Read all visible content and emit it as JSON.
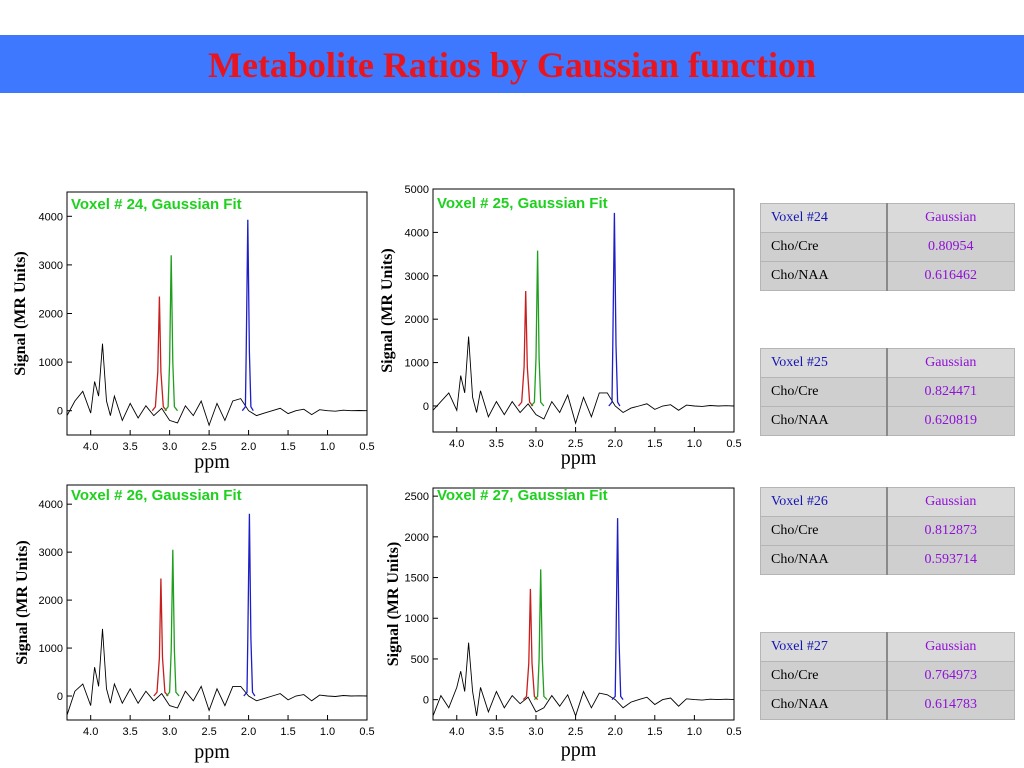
{
  "slide": {
    "title": "Metabolite Ratios by Gaussian function",
    "banner_color": "#3d78ff",
    "title_color": "#e8141e"
  },
  "chart_data": [
    {
      "type": "line",
      "title": "Voxel # 24, Gaussian Fit",
      "xlabel": "ppm",
      "ylabel": "Signal (MR Units)",
      "xlim": [
        4.3,
        0.5
      ],
      "ylim": [
        -500,
        4500
      ],
      "x_ticks": [
        4.0,
        3.5,
        3.0,
        2.5,
        2.0,
        1.5,
        1.0,
        0.5
      ],
      "y_ticks": [
        0,
        1000,
        2000,
        3000,
        4000
      ],
      "series": [
        {
          "color": "#000000",
          "x": [
            4.3,
            4.2,
            4.1,
            4.0,
            3.95,
            3.9,
            3.85,
            3.8,
            3.75,
            3.7,
            3.6,
            3.5,
            3.4,
            3.3,
            3.2,
            3.1,
            3.0,
            2.9,
            2.8,
            2.7,
            2.6,
            2.5,
            2.4,
            2.3,
            2.2,
            2.1,
            2.0,
            1.9,
            1.8,
            1.7,
            1.6,
            1.5,
            1.4,
            1.3,
            1.2,
            1.1,
            1.0,
            0.9,
            0.8,
            0.7,
            0.6,
            0.5
          ],
          "y": [
            -100,
            200,
            400,
            -50,
            600,
            300,
            1380,
            200,
            -100,
            300,
            -200,
            150,
            -150,
            100,
            -100,
            50,
            -200,
            -250,
            100,
            -100,
            200,
            -300,
            150,
            -200,
            200,
            250,
            0,
            -100,
            -50,
            0,
            50,
            -60,
            0,
            30,
            -80,
            20,
            0,
            -10,
            10,
            0,
            5,
            0
          ]
        },
        {
          "color": "#c81e1e",
          "x": [
            3.22,
            3.18,
            3.15,
            3.13,
            3.11,
            3.08,
            3.04
          ],
          "y": [
            0,
            80,
            800,
            2350,
            800,
            80,
            0
          ]
        },
        {
          "color": "#1ea01e",
          "x": [
            3.06,
            3.02,
            3.0,
            2.98,
            2.96,
            2.94,
            2.9
          ],
          "y": [
            0,
            80,
            1000,
            3200,
            1000,
            80,
            0
          ]
        },
        {
          "color": "#1e1ec8",
          "x": [
            2.08,
            2.04,
            2.03,
            2.01,
            1.99,
            1.97,
            1.94
          ],
          "y": [
            0,
            80,
            1200,
            3930,
            1200,
            80,
            0
          ]
        }
      ]
    },
    {
      "type": "line",
      "title": "Voxel # 25, Gaussian Fit",
      "xlabel": "ppm",
      "ylabel": "Signal (MR Units)",
      "xlim": [
        4.3,
        0.5
      ],
      "ylim": [
        -600,
        5000
      ],
      "x_ticks": [
        4.0,
        3.5,
        3.0,
        2.5,
        2.0,
        1.5,
        1.0,
        0.5
      ],
      "y_ticks": [
        0,
        1000,
        2000,
        3000,
        4000,
        5000
      ],
      "series": [
        {
          "color": "#000000",
          "x": [
            4.3,
            4.2,
            4.1,
            4.0,
            3.95,
            3.9,
            3.85,
            3.8,
            3.75,
            3.7,
            3.6,
            3.5,
            3.4,
            3.3,
            3.2,
            3.1,
            3.0,
            2.9,
            2.8,
            2.7,
            2.6,
            2.5,
            2.4,
            2.3,
            2.2,
            2.1,
            2.0,
            1.9,
            1.8,
            1.7,
            1.6,
            1.5,
            1.4,
            1.3,
            1.2,
            1.1,
            1.0,
            0.9,
            0.8,
            0.7,
            0.6,
            0.5
          ],
          "y": [
            -100,
            100,
            300,
            -100,
            700,
            300,
            1600,
            200,
            -150,
            350,
            -250,
            100,
            -200,
            100,
            -150,
            50,
            -200,
            -300,
            100,
            -150,
            250,
            -400,
            200,
            -250,
            300,
            300,
            0,
            -150,
            -50,
            0,
            50,
            -80,
            0,
            30,
            -100,
            20,
            0,
            -10,
            10,
            0,
            5,
            0
          ]
        },
        {
          "color": "#c81e1e",
          "x": [
            3.22,
            3.18,
            3.15,
            3.13,
            3.11,
            3.08,
            3.04
          ],
          "y": [
            0,
            90,
            900,
            2650,
            900,
            90,
            0
          ]
        },
        {
          "color": "#1ea01e",
          "x": [
            3.06,
            3.02,
            3.0,
            2.98,
            2.96,
            2.94,
            2.9
          ],
          "y": [
            0,
            90,
            1100,
            3580,
            1100,
            90,
            0
          ]
        },
        {
          "color": "#1e1ec8",
          "x": [
            2.08,
            2.04,
            2.03,
            2.01,
            1.99,
            1.97,
            1.94
          ],
          "y": [
            0,
            90,
            1400,
            4450,
            1400,
            90,
            0
          ]
        }
      ]
    },
    {
      "type": "line",
      "title": "Voxel # 26, Gaussian Fit",
      "xlabel": "ppm",
      "ylabel": "Signal (MR Units)",
      "xlim": [
        4.3,
        0.5
      ],
      "ylim": [
        -500,
        4400
      ],
      "x_ticks": [
        4.0,
        3.5,
        3.0,
        2.5,
        2.0,
        1.5,
        1.0,
        0.5
      ],
      "y_ticks": [
        0,
        1000,
        2000,
        3000,
        4000
      ],
      "series": [
        {
          "color": "#000000",
          "x": [
            4.3,
            4.2,
            4.1,
            4.0,
            3.95,
            3.9,
            3.85,
            3.8,
            3.75,
            3.7,
            3.6,
            3.5,
            3.4,
            3.3,
            3.2,
            3.1,
            3.0,
            2.9,
            2.8,
            2.7,
            2.6,
            2.5,
            2.4,
            2.3,
            2.2,
            2.1,
            2.0,
            1.9,
            1.8,
            1.7,
            1.6,
            1.5,
            1.4,
            1.3,
            1.2,
            1.1,
            1.0,
            0.9,
            0.8,
            0.7,
            0.6,
            0.5
          ],
          "y": [
            -400,
            100,
            250,
            -200,
            600,
            200,
            1400,
            150,
            -150,
            250,
            -150,
            150,
            -150,
            100,
            -100,
            50,
            -200,
            -250,
            100,
            -100,
            200,
            -300,
            150,
            -200,
            200,
            200,
            0,
            -100,
            -50,
            0,
            50,
            -80,
            0,
            30,
            -100,
            20,
            0,
            -10,
            10,
            0,
            5,
            0
          ]
        },
        {
          "color": "#c81e1e",
          "x": [
            3.2,
            3.16,
            3.13,
            3.11,
            3.09,
            3.06,
            3.02
          ],
          "y": [
            0,
            80,
            800,
            2450,
            800,
            80,
            0
          ]
        },
        {
          "color": "#1ea01e",
          "x": [
            3.04,
            3.0,
            2.98,
            2.96,
            2.94,
            2.92,
            2.88
          ],
          "y": [
            0,
            80,
            950,
            3050,
            950,
            80,
            0
          ]
        },
        {
          "color": "#1e1ec8",
          "x": [
            2.06,
            2.02,
            2.01,
            1.99,
            1.97,
            1.95,
            1.92
          ],
          "y": [
            0,
            80,
            1200,
            3800,
            1200,
            80,
            0
          ]
        }
      ]
    },
    {
      "type": "line",
      "title": "Voxel # 27, Gaussian Fit",
      "xlabel": "ppm",
      "ylabel": "Signal (MR Units)",
      "xlim": [
        4.3,
        0.5
      ],
      "ylim": [
        -250,
        2600
      ],
      "x_ticks": [
        4.0,
        3.5,
        3.0,
        2.5,
        2.0,
        1.5,
        1.0,
        0.5
      ],
      "y_ticks": [
        0,
        500,
        1000,
        1500,
        2000,
        2500
      ],
      "series": [
        {
          "color": "#000000",
          "x": [
            4.3,
            4.2,
            4.1,
            4.0,
            3.95,
            3.9,
            3.85,
            3.8,
            3.75,
            3.7,
            3.6,
            3.5,
            3.4,
            3.3,
            3.2,
            3.1,
            3.0,
            2.9,
            2.8,
            2.7,
            2.6,
            2.5,
            2.4,
            2.3,
            2.2,
            2.1,
            2.0,
            1.9,
            1.8,
            1.7,
            1.6,
            1.5,
            1.4,
            1.3,
            1.2,
            1.1,
            1.0,
            0.9,
            0.8,
            0.7,
            0.6,
            0.5
          ],
          "y": [
            -200,
            50,
            -100,
            150,
            350,
            100,
            700,
            100,
            -200,
            150,
            -150,
            100,
            -100,
            50,
            -50,
            30,
            -150,
            -100,
            50,
            -80,
            60,
            -200,
            100,
            -100,
            80,
            60,
            0,
            -100,
            -30,
            0,
            30,
            -60,
            0,
            20,
            -80,
            10,
            0,
            -5,
            5,
            0,
            5,
            0
          ]
        },
        {
          "color": "#c81e1e",
          "x": [
            3.16,
            3.12,
            3.09,
            3.07,
            3.05,
            3.02,
            2.98
          ],
          "y": [
            0,
            40,
            450,
            1360,
            450,
            40,
            0
          ]
        },
        {
          "color": "#1ea01e",
          "x": [
            3.02,
            2.98,
            2.96,
            2.94,
            2.92,
            2.9,
            2.86
          ],
          "y": [
            0,
            40,
            500,
            1600,
            500,
            40,
            0
          ]
        },
        {
          "color": "#1e1ec8",
          "x": [
            2.04,
            2.0,
            1.99,
            1.97,
            1.95,
            1.93,
            1.9
          ],
          "y": [
            0,
            40,
            700,
            2230,
            700,
            40,
            0
          ]
        }
      ]
    }
  ],
  "tables": [
    {
      "header": [
        "Voxel #24",
        "Gaussian"
      ],
      "rows": [
        [
          "Cho/Cre",
          "0.80954"
        ],
        [
          "Cho/NAA",
          "0.616462"
        ]
      ]
    },
    {
      "header": [
        "Voxel #25",
        "Gaussian"
      ],
      "rows": [
        [
          "Cho/Cre",
          "0.824471"
        ],
        [
          "Cho/NAA",
          "0.620819"
        ]
      ]
    },
    {
      "header": [
        "Voxel #26",
        "Gaussian"
      ],
      "rows": [
        [
          "Cho/Cre",
          "0.812873"
        ],
        [
          "Cho/NAA",
          "0.593714"
        ]
      ]
    },
    {
      "header": [
        "Voxel #27",
        "Gaussian"
      ],
      "rows": [
        [
          "Cho/Cre",
          "0.764973"
        ],
        [
          "Cho/NAA",
          "0.614783"
        ]
      ]
    }
  ]
}
